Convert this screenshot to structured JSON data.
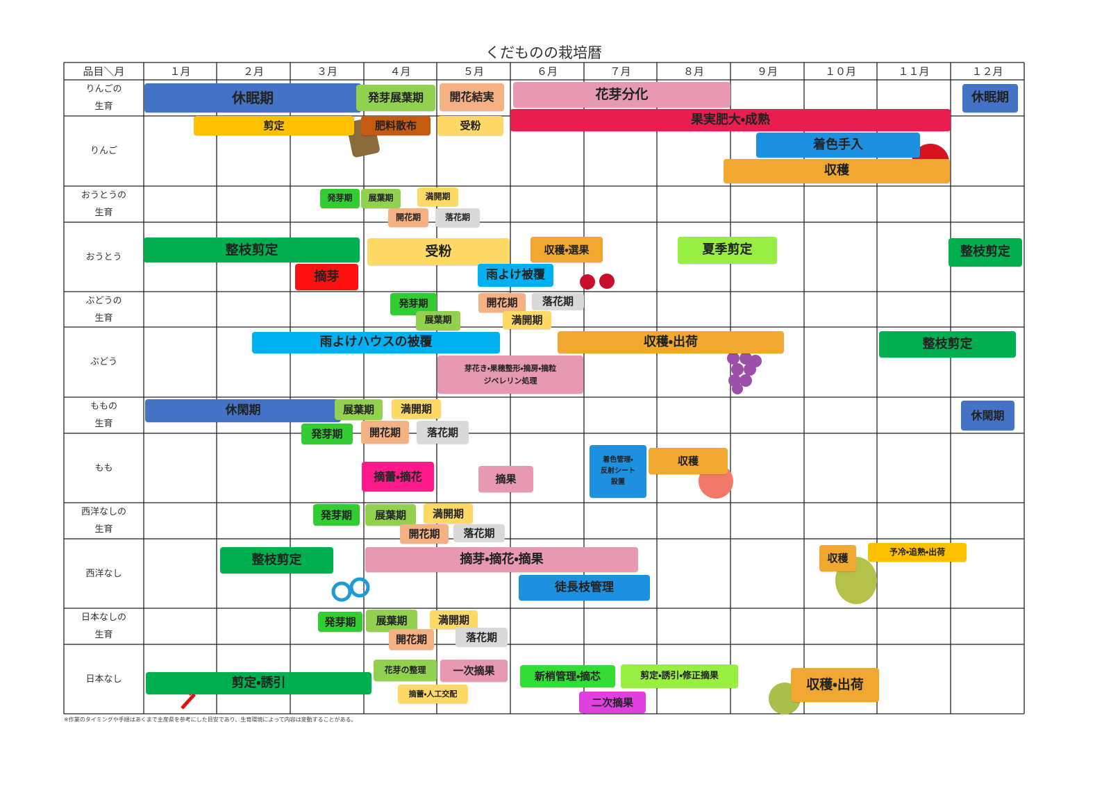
{
  "title": "くだものの栽培暦",
  "header": {
    "corner": "品目＼月",
    "months": [
      "１月",
      "２月",
      "３月",
      "４月",
      "５月",
      "６月",
      "７月",
      "８月",
      "９月",
      "１０月",
      "１１月",
      "１２月"
    ]
  },
  "rows": [
    {
      "label": [
        "りんごの",
        "生育"
      ],
      "bars": [
        "休眠期",
        "発芽展葉期",
        "開花結実",
        "花芽分化",
        "休眠期"
      ]
    },
    {
      "label": [
        "りんご"
      ],
      "bars": [
        "剪定",
        "肥料散布",
        "受粉",
        "果実肥大・成熟",
        "着色手入",
        "収穫"
      ]
    },
    {
      "label": [
        "おうとうの",
        "生育"
      ],
      "bars": [
        "発芽期",
        "展葉期",
        "満開期",
        "開花期",
        "落花期"
      ]
    },
    {
      "label": [
        "おうとう"
      ],
      "bars": [
        "整枝剪定",
        "受粉",
        "収穫・選果",
        "夏季剪定",
        "整枝剪定",
        "摘芽",
        "雨よけ被覆"
      ]
    },
    {
      "label": [
        "ぶどうの",
        "生育"
      ],
      "bars": [
        "発芽期",
        "開花期",
        "落花期",
        "展葉期",
        "満開期"
      ]
    },
    {
      "label": [
        "ぶどう"
      ],
      "bars": [
        "雨よけハウスの被覆",
        "収穫・出荷",
        "整枝剪定",
        [
          "芽花き・果穂整形・摘房・摘粒",
          "ジベレリン処理"
        ]
      ]
    },
    {
      "label": [
        "ももの",
        "生育"
      ],
      "bars": [
        "休閑期",
        "展葉期",
        "満開期",
        "発芽期",
        "開花期",
        "落花期",
        "休閑期"
      ]
    },
    {
      "label": [
        "もも"
      ],
      "bars": [
        "摘蕾・摘花",
        "摘果",
        [
          "着色管理・",
          "反射シート",
          "設置"
        ],
        "収穫"
      ]
    },
    {
      "label": [
        "西洋なしの",
        "生育"
      ],
      "bars": [
        "発芽期",
        "展葉期",
        "満開期",
        "開花期",
        "落花期"
      ]
    },
    {
      "label": [
        "西洋なし"
      ],
      "bars": [
        "整枝剪定",
        "摘芽・摘花・摘果",
        "徒長枝管理",
        "収穫",
        "予冷・追熟・出荷"
      ]
    },
    {
      "label": [
        "日本なしの",
        "生育"
      ],
      "bars": [
        "発芽期",
        "展葉期",
        "満開期",
        "開花期",
        "落花期"
      ]
    },
    {
      "label": [
        "日本なし"
      ],
      "bars": [
        "剪定・誘引",
        "花芽の整理",
        "一次摘果",
        "摘蕾・人工交配",
        "新梢管理・摘芯",
        "剪定・誘引・修正摘果",
        "二次摘果",
        "収穫・出荷"
      ]
    }
  ],
  "note": "※作業のタイミングや手順はあくまで主産県を参考にした目安であり、生育環境によって内容は変動することがある。"
}
